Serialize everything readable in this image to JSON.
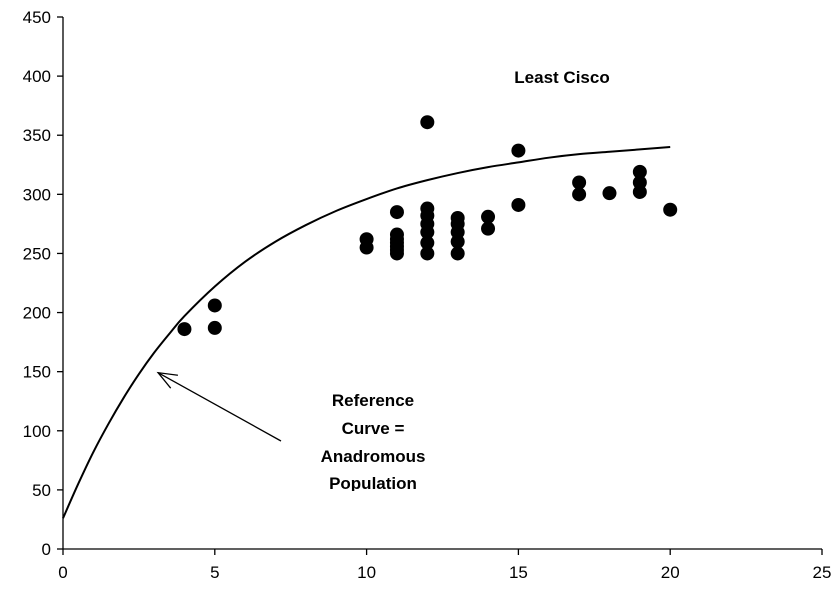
{
  "chart_data": {
    "type": "scatter",
    "title": "Least Cisco",
    "xlabel": "",
    "ylabel": "",
    "xlim": [
      0,
      25
    ],
    "ylim": [
      0,
      450
    ],
    "x_ticks": [
      0,
      5,
      10,
      15,
      20,
      25
    ],
    "y_ticks": [
      0,
      50,
      100,
      150,
      200,
      250,
      300,
      350,
      400,
      450
    ],
    "grid": false,
    "points": [
      {
        "x": 4,
        "y": 186
      },
      {
        "x": 5,
        "y": 206
      },
      {
        "x": 5,
        "y": 187
      },
      {
        "x": 10,
        "y": 262
      },
      {
        "x": 10,
        "y": 255
      },
      {
        "x": 11,
        "y": 285
      },
      {
        "x": 11,
        "y": 266
      },
      {
        "x": 11,
        "y": 262
      },
      {
        "x": 11,
        "y": 259
      },
      {
        "x": 11,
        "y": 256
      },
      {
        "x": 11,
        "y": 253
      },
      {
        "x": 11,
        "y": 250
      },
      {
        "x": 12,
        "y": 361
      },
      {
        "x": 12,
        "y": 288
      },
      {
        "x": 12,
        "y": 282
      },
      {
        "x": 12,
        "y": 275
      },
      {
        "x": 12,
        "y": 268
      },
      {
        "x": 12,
        "y": 259
      },
      {
        "x": 12,
        "y": 250
      },
      {
        "x": 13,
        "y": 280
      },
      {
        "x": 13,
        "y": 275
      },
      {
        "x": 13,
        "y": 268
      },
      {
        "x": 13,
        "y": 260
      },
      {
        "x": 13,
        "y": 250
      },
      {
        "x": 14,
        "y": 281
      },
      {
        "x": 14,
        "y": 271
      },
      {
        "x": 15,
        "y": 337
      },
      {
        "x": 15,
        "y": 291
      },
      {
        "x": 17,
        "y": 310
      },
      {
        "x": 17,
        "y": 300
      },
      {
        "x": 18,
        "y": 301
      },
      {
        "x": 19,
        "y": 319
      },
      {
        "x": 19,
        "y": 310
      },
      {
        "x": 19,
        "y": 302
      },
      {
        "x": 20,
        "y": 287
      }
    ],
    "reference_curve": {
      "name": "Reference Curve = Anadromous Population",
      "x": [
        0,
        0.5,
        1,
        1.5,
        2,
        2.5,
        3,
        3.5,
        4,
        5,
        6,
        7,
        8,
        9,
        10,
        11,
        12,
        13,
        14,
        15,
        16,
        17,
        18,
        19,
        20
      ],
      "y": [
        26,
        55,
        82,
        106,
        128,
        148,
        166,
        182,
        197,
        222,
        243,
        260,
        274,
        286,
        296,
        305,
        312,
        318,
        323,
        327,
        331,
        334,
        336,
        338,
        340
      ]
    },
    "annotations": [
      {
        "text": "Least Cisco"
      },
      {
        "lines": [
          "Reference",
          "Curve =",
          "Anadromous",
          "Population"
        ],
        "arrow_to": {
          "x": 3,
          "y": 150
        }
      }
    ]
  }
}
